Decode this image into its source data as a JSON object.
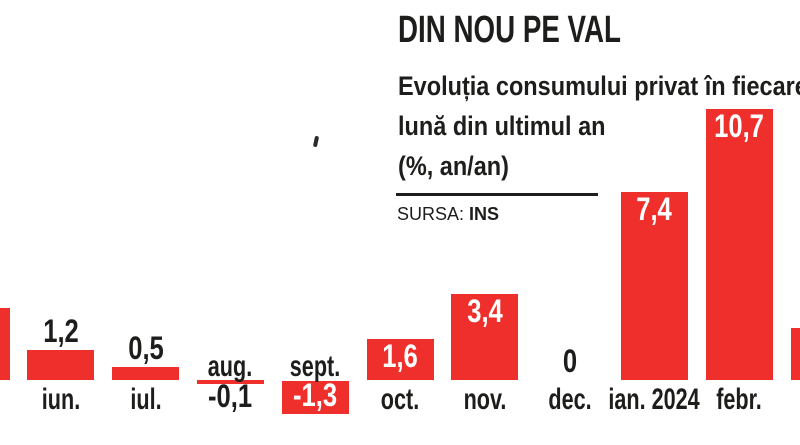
{
  "page": {
    "background": "#ffffff",
    "text_color": "#1d1d1b",
    "accent_red": "#ee2f2b"
  },
  "header": {
    "title": "DIN NOU PE VAL",
    "subtitle_lines": [
      "Evoluția consumului privat în fiecare",
      "lună din ultimul an",
      "(%, an/an)"
    ],
    "source_label": "SURSA:",
    "source_value": "INS"
  },
  "chart_data": {
    "type": "bar",
    "title": "DIN NOU PE VAL",
    "subtitle": "Evoluția consumului privat în fiecare lună din ultimul an",
    "unit": "(%, an/an)",
    "source": "INS",
    "bar_color": "#ee2f2b",
    "grid": false,
    "legend": false,
    "baseline_value": 0,
    "categories": [
      "iun.",
      "iul.",
      "aug.",
      "sept.",
      "oct.",
      "nov.",
      "dec.",
      "ian. 2024",
      "febr."
    ],
    "values": [
      1.2,
      0.5,
      -0.1,
      -1.3,
      1.6,
      3.4,
      0,
      7.4,
      10.7
    ],
    "value_labels": [
      "1,2",
      "0,5",
      "-0,1",
      "-1,3",
      "1,6",
      "3,4",
      "0",
      "7,4",
      "10,7"
    ],
    "bars": [
      {
        "slot": 0,
        "label": "",
        "value": 2.85,
        "value_text": "",
        "value_pos": "none",
        "month_pos": "none",
        "cut": "left",
        "approx": true
      },
      {
        "slot": 1,
        "label": "iun.",
        "value": 1.2,
        "value_text": "1,2",
        "value_pos": "above",
        "month_pos": "below"
      },
      {
        "slot": 2,
        "label": "iul.",
        "value": 0.5,
        "value_text": "0,5",
        "value_pos": "above",
        "month_pos": "below"
      },
      {
        "slot": 3,
        "label": "aug.",
        "value": -0.1,
        "value_text": "-0,1",
        "value_pos": "below",
        "month_pos": "above"
      },
      {
        "slot": 4,
        "label": "sept.",
        "value": -1.3,
        "value_text": "-1,3",
        "value_pos": "inside",
        "month_pos": "above"
      },
      {
        "slot": 5,
        "label": "oct.",
        "value": 1.6,
        "value_text": "1,6",
        "value_pos": "inside",
        "month_pos": "below"
      },
      {
        "slot": 6,
        "label": "nov.",
        "value": 3.4,
        "value_text": "3,4",
        "value_pos": "inside",
        "month_pos": "below"
      },
      {
        "slot": 7,
        "label": "dec.",
        "value": 0,
        "value_text": "0",
        "value_pos": "above",
        "month_pos": "below"
      },
      {
        "slot": 8,
        "label": "ian. 2024",
        "value": 7.4,
        "value_text": "7,4",
        "value_pos": "inside",
        "month_pos": "below"
      },
      {
        "slot": 9,
        "label": "febr.",
        "value": 10.7,
        "value_text": "10,7",
        "value_pos": "inside",
        "month_pos": "below"
      },
      {
        "slot": 10,
        "label": "",
        "value": 2.05,
        "value_text": "",
        "value_pos": "none",
        "month_pos": "none",
        "cut": "right",
        "approx": true
      }
    ]
  }
}
